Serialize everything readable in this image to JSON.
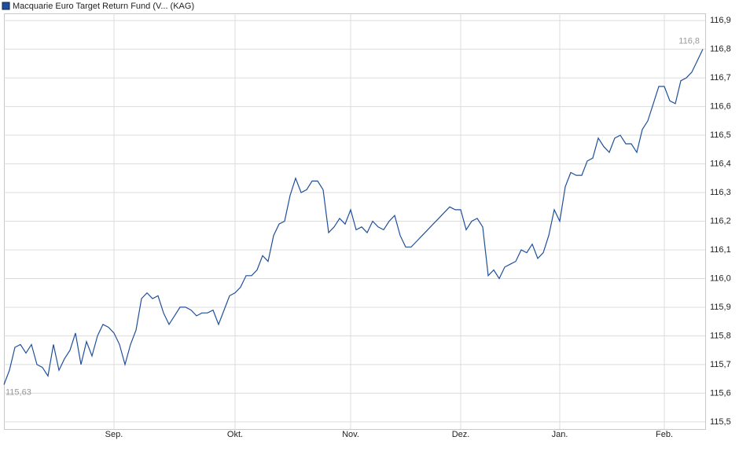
{
  "chart_data": {
    "type": "line",
    "title": "Macquarie Euro Target Return Fund (V... (KAG)",
    "categories": [
      null,
      null,
      null,
      null,
      null,
      null,
      null,
      null,
      null,
      null,
      null,
      null,
      null,
      null,
      null,
      null,
      null,
      null,
      null,
      null,
      "Sep.",
      null,
      null,
      null,
      null,
      null,
      null,
      null,
      null,
      null,
      null,
      null,
      null,
      null,
      null,
      null,
      null,
      null,
      null,
      null,
      null,
      null,
      "Okt.",
      null,
      null,
      null,
      null,
      null,
      null,
      null,
      null,
      null,
      null,
      null,
      null,
      null,
      null,
      null,
      null,
      null,
      null,
      null,
      null,
      "Nov.",
      null,
      null,
      null,
      null,
      null,
      null,
      null,
      null,
      null,
      null,
      null,
      null,
      null,
      null,
      null,
      null,
      null,
      null,
      null,
      "Dez.",
      null,
      null,
      null,
      null,
      null,
      null,
      null,
      null,
      null,
      null,
      null,
      null,
      null,
      null,
      null,
      null,
      null,
      "Jan.",
      null,
      null,
      null,
      null,
      null,
      null,
      null,
      null,
      null,
      null,
      null,
      null,
      null,
      null,
      null,
      null,
      null,
      null,
      "Feb.",
      null,
      null,
      null,
      null,
      null,
      null,
      null
    ],
    "series": [
      {
        "name": "Macquarie Euro Target Return Fund (V... (KAG)",
        "color": "#1f4f9c",
        "values": [
          115.63,
          115.68,
          115.76,
          115.77,
          115.74,
          115.77,
          115.7,
          115.69,
          115.66,
          115.77,
          115.68,
          115.72,
          115.75,
          115.81,
          115.7,
          115.78,
          115.73,
          115.8,
          115.84,
          115.83,
          115.81,
          115.77,
          115.7,
          115.77,
          115.82,
          115.93,
          115.95,
          115.93,
          115.94,
          115.88,
          115.84,
          115.87,
          115.9,
          115.9,
          115.89,
          115.87,
          115.88,
          115.88,
          115.89,
          115.84,
          115.89,
          115.94,
          115.95,
          115.97,
          116.01,
          116.01,
          116.03,
          116.08,
          116.06,
          116.15,
          116.19,
          116.2,
          116.29,
          116.35,
          116.3,
          116.31,
          116.34,
          116.34,
          116.31,
          116.16,
          116.18,
          116.21,
          116.19,
          116.24,
          116.17,
          116.18,
          116.16,
          116.2,
          116.18,
          116.17,
          116.2,
          116.22,
          116.15,
          116.11,
          116.11,
          116.13,
          116.15,
          116.17,
          116.19,
          116.21,
          116.23,
          116.25,
          116.24,
          116.24,
          116.17,
          116.2,
          116.21,
          116.18,
          116.01,
          116.03,
          116.0,
          116.04,
          116.05,
          116.06,
          116.1,
          116.09,
          116.12,
          116.07,
          116.09,
          116.15,
          116.24,
          116.2,
          116.32,
          116.37,
          116.36,
          116.36,
          116.41,
          116.42,
          116.49,
          116.46,
          116.44,
          116.49,
          116.5,
          116.47,
          116.47,
          116.44,
          116.52,
          116.55,
          116.61,
          116.67,
          116.67,
          116.62,
          116.61,
          116.69,
          116.7,
          116.72,
          116.76,
          116.8
        ],
        "value_labels": [
          "115,63",
          null,
          null,
          null,
          null,
          null,
          null,
          null,
          null,
          null,
          null,
          null,
          null,
          null,
          null,
          null,
          null,
          null,
          null,
          null,
          null,
          null,
          null,
          null,
          null,
          null,
          null,
          null,
          null,
          null,
          null,
          null,
          null,
          null,
          null,
          null,
          null,
          null,
          null,
          null,
          null,
          null,
          null,
          null,
          null,
          null,
          null,
          null,
          null,
          null,
          null,
          null,
          null,
          null,
          null,
          null,
          null,
          null,
          null,
          null,
          null,
          null,
          null,
          null,
          null,
          null,
          null,
          null,
          null,
          null,
          null,
          null,
          null,
          null,
          null,
          null,
          null,
          null,
          null,
          null,
          null,
          null,
          null,
          null,
          null,
          null,
          null,
          null,
          null,
          null,
          null,
          null,
          null,
          null,
          null,
          null,
          null,
          null,
          null,
          null,
          null,
          null,
          null,
          null,
          null,
          null,
          null,
          null,
          null,
          null,
          null,
          null,
          null,
          null,
          null,
          null,
          null,
          null,
          null,
          null,
          null,
          null,
          null,
          null,
          null,
          null,
          null,
          "116,8"
        ]
      }
    ],
    "ylim": [
      115.475,
      116.925
    ],
    "yticks": [
      {
        "value": 115.5,
        "label": "115,5"
      },
      {
        "value": 115.6,
        "label": "115,6"
      },
      {
        "value": 115.7,
        "label": "115,7"
      },
      {
        "value": 115.8,
        "label": "115,8"
      },
      {
        "value": 115.9,
        "label": "115,9"
      },
      {
        "value": 116.0,
        "label": "116,0"
      },
      {
        "value": 116.1,
        "label": "116,1"
      },
      {
        "value": 116.2,
        "label": "116,2"
      },
      {
        "value": 116.3,
        "label": "116,3"
      },
      {
        "value": 116.4,
        "label": "116,4"
      },
      {
        "value": 116.5,
        "label": "116,5"
      },
      {
        "value": 116.6,
        "label": "116,6"
      },
      {
        "value": 116.7,
        "label": "116,7"
      },
      {
        "value": 116.8,
        "label": "116,8"
      },
      {
        "value": 116.9,
        "label": "116,9"
      }
    ],
    "grid": true
  }
}
